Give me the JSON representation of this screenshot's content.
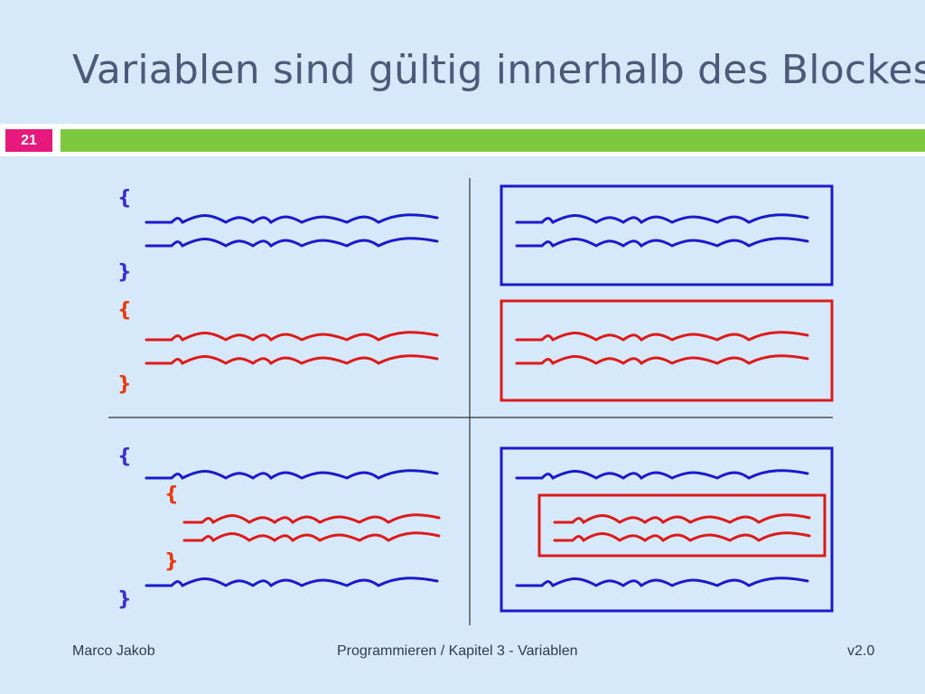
{
  "slide": {
    "title": "Variablen sind gültig innerhalb des Blockes!",
    "number": "21"
  },
  "footer": {
    "author": "Marco Jakob",
    "course": "Programmieren / Kapitel 3 - Variablen",
    "version": "v2.0"
  },
  "diagram": {
    "open_brace": "{",
    "close_brace": "}",
    "colors": {
      "outer_block": "#1a1acc",
      "inner_block": "#dd1a1a",
      "outer_brace": "#3b2fd0",
      "inner_brace": "#e83a10",
      "divider": "#333333"
    }
  }
}
